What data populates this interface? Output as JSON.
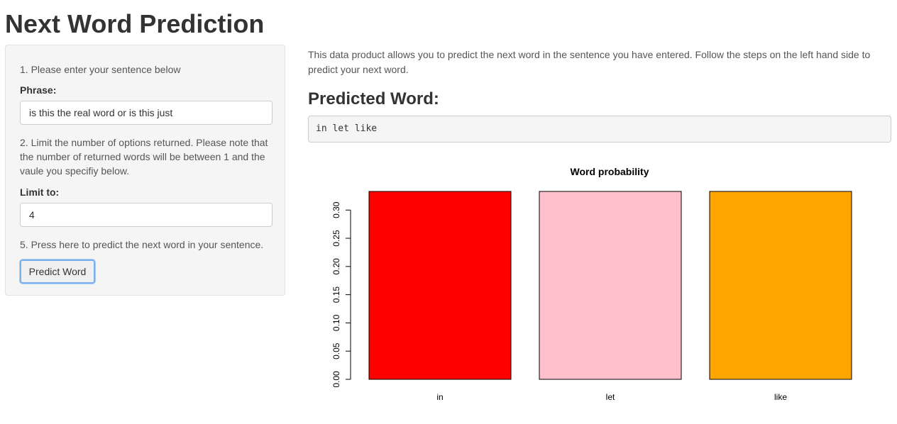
{
  "app": {
    "title": "Next Word Prediction"
  },
  "sidebar": {
    "step1_text": "1. Please enter your sentence below",
    "phrase_label": "Phrase:",
    "phrase_value": "is this the real word or is this just",
    "step2_text": "2. Limit the number of options returned. Please note that the number of returned words will be between 1 and the vaule you specifiy below.",
    "limit_label": "Limit to:",
    "limit_value": "4",
    "step5_text": "5. Press here to predict the next word in your sentence.",
    "predict_button_label": "Predict Word"
  },
  "main": {
    "intro_text": "This data product allows you to predict the next word in the sentence you have entered. Follow the steps on the left hand side to predict your next word.",
    "predicted_heading": "Predicted Word:",
    "predicted_output": "in let like"
  },
  "chart_data": {
    "type": "bar",
    "title": "Word probability",
    "categories": [
      "in",
      "let",
      "like"
    ],
    "values": [
      0.333,
      0.333,
      0.333
    ],
    "colors": [
      "#ff0000",
      "#ffc0cb",
      "#ffa500"
    ],
    "ylim": [
      0,
      0.333
    ],
    "yticks": [
      0.0,
      0.05,
      0.1,
      0.15,
      0.2,
      0.25,
      0.3
    ],
    "ytick_labels": [
      "0.00",
      "0.05",
      "0.10",
      "0.15",
      "0.20",
      "0.25",
      "0.30"
    ],
    "xlabel": "",
    "ylabel": "",
    "grid": false,
    "legend": false
  }
}
